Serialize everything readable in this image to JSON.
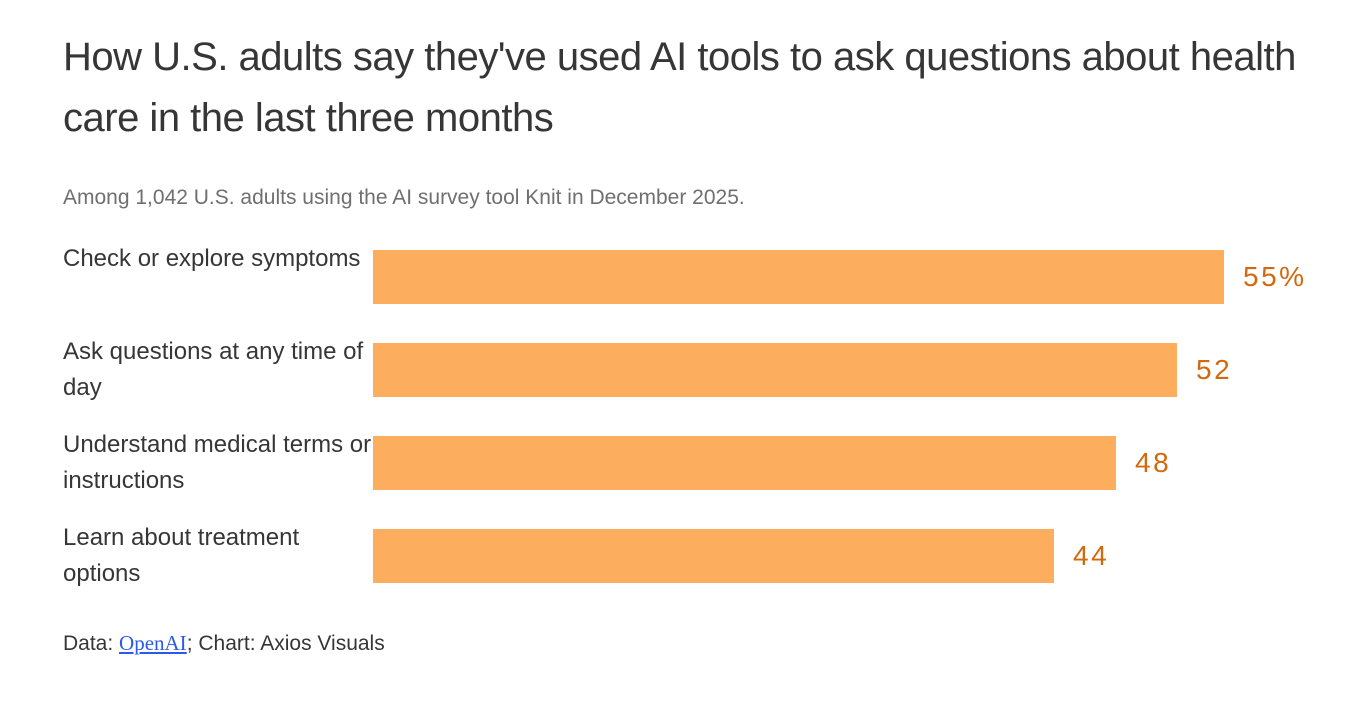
{
  "chart_data": {
    "type": "bar",
    "orientation": "horizontal",
    "title": "How U.S. adults say they've used AI tools to ask questions about health care in the last three months",
    "subtitle": "Among 1,042 U.S. adults using the AI survey tool Knit in December 2025.",
    "categories": [
      "Check or explore symptoms",
      "Ask questions at any time of day",
      "Understand medical terms or instructions",
      "Learn about treatment options"
    ],
    "values": [
      55,
      52,
      48,
      44
    ],
    "value_labels": [
      "55%",
      "52",
      "48",
      "44"
    ],
    "unit": "percent",
    "xlim": [
      0,
      55
    ],
    "grid": false,
    "legend": false,
    "bar_color": "#fcae5e",
    "value_label_color": "#d2690e"
  },
  "footer": {
    "data_label": "Data: ",
    "source_link": "OpenAI",
    "credit": "; Chart: Axios Visuals"
  }
}
